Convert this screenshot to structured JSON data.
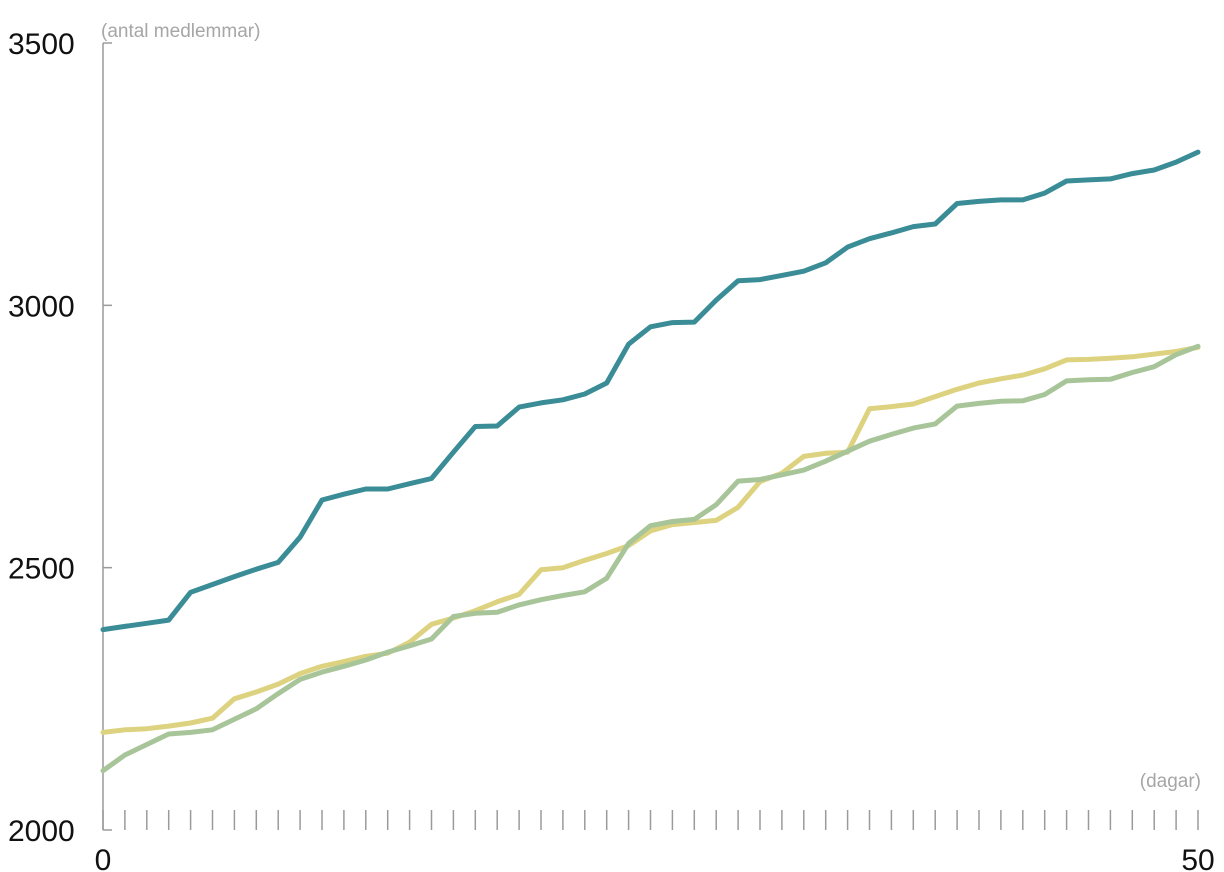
{
  "chart_data": {
    "type": "line",
    "title": "",
    "xlabel": "(dagar)",
    "ylabel": "(antal medlemmar)",
    "xlim": [
      0,
      50
    ],
    "ylim": [
      2000,
      3500
    ],
    "x_ticks": [
      "0",
      "50"
    ],
    "y_ticks": [
      "2000",
      "2500",
      "3000",
      "3500"
    ],
    "grid": false,
    "legend": "none",
    "x": [
      0,
      1,
      2,
      3,
      4,
      5,
      6,
      7,
      8,
      9,
      10,
      11,
      12,
      13,
      14,
      15,
      16,
      17,
      18,
      19,
      20,
      21,
      22,
      23,
      24,
      25,
      26,
      27,
      28,
      29,
      30,
      31,
      32,
      33,
      34,
      35,
      36,
      37,
      38,
      39,
      40,
      41,
      42,
      43,
      44,
      45,
      46,
      47,
      48,
      49,
      50
    ],
    "series": [
      {
        "color": "#3a8c96",
        "values": [
          2382,
          2388,
          2394,
          2400,
          2453,
          2468,
          2483,
          2497,
          2510,
          2558,
          2629,
          2640,
          2650,
          2650,
          2660,
          2670,
          2720,
          2769,
          2770,
          2806,
          2814,
          2820,
          2831,
          2852,
          2926,
          2959,
          2967,
          2968,
          3010,
          3047,
          3049,
          3057,
          3065,
          3081,
          3111,
          3127,
          3138,
          3150,
          3155,
          3194,
          3198,
          3201,
          3201,
          3214,
          3237,
          3239,
          3241,
          3251,
          3258,
          3273,
          3292
        ]
      },
      {
        "color": "#ddd27f",
        "values": [
          2186,
          2191,
          2193,
          2198,
          2204,
          2213,
          2250,
          2263,
          2278,
          2298,
          2312,
          2321,
          2331,
          2337,
          2358,
          2392,
          2404,
          2418,
          2435,
          2449,
          2496,
          2500,
          2514,
          2527,
          2542,
          2570,
          2582,
          2586,
          2590,
          2615,
          2664,
          2680,
          2712,
          2718,
          2720,
          2803,
          2807,
          2812,
          2826,
          2840,
          2852,
          2860,
          2867,
          2879,
          2896,
          2897,
          2899,
          2902,
          2907,
          2912,
          2920
        ]
      },
      {
        "color": "#a8c59a",
        "values": [
          2113,
          2143,
          2163,
          2183,
          2186,
          2191,
          2211,
          2231,
          2260,
          2287,
          2301,
          2312,
          2324,
          2339,
          2351,
          2364,
          2407,
          2413,
          2415,
          2429,
          2439,
          2447,
          2454,
          2480,
          2546,
          2580,
          2588,
          2592,
          2620,
          2665,
          2668,
          2677,
          2686,
          2703,
          2722,
          2741,
          2754,
          2766,
          2774,
          2808,
          2813,
          2817,
          2818,
          2830,
          2856,
          2858,
          2859,
          2872,
          2883,
          2906,
          2922
        ]
      }
    ]
  }
}
